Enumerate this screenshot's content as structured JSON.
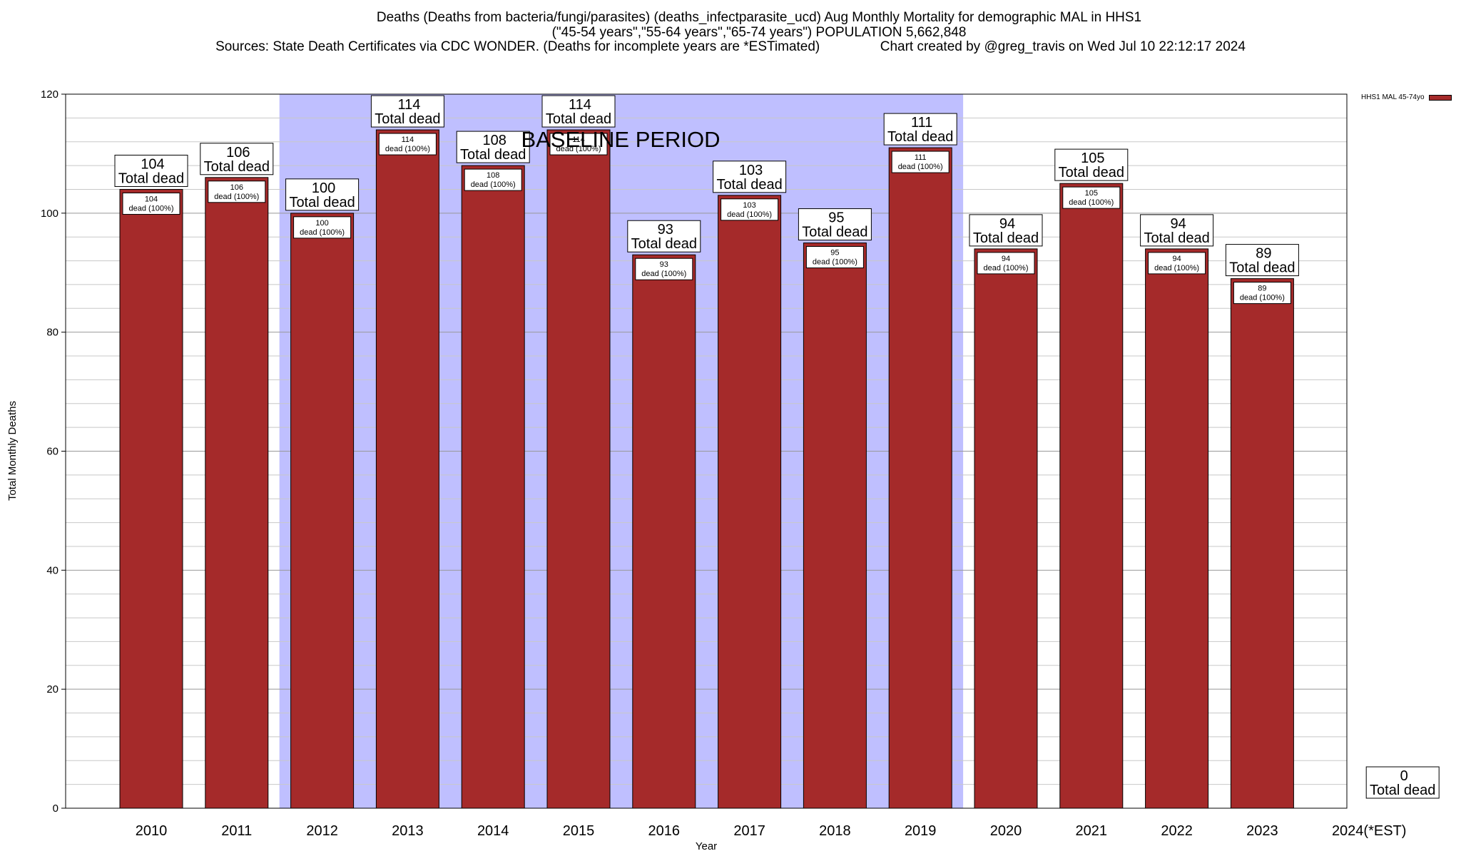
{
  "header": {
    "title_line1": "Deaths (Deaths from bacteria/fungi/parasites) (deaths_infectparasite_ucd) Aug Monthly Mortality for demographic MAL in HHS1",
    "title_line2": "(\"45-54 years\",\"55-64 years\",\"65-74 years\") POPULATION 5,662,848",
    "title_line3": "Sources: State Death Certificates via CDC WONDER. (Deaths for incomplete years are *ESTimated)                Chart created by @greg_travis on Wed Jul 10 22:12:17 2024"
  },
  "legend": {
    "label": "HHS1 MAL 45-74yo"
  },
  "colors": {
    "bar": "#a52a2a",
    "baseline_shade": "#bfbfff",
    "grid": "#c8c8c8"
  },
  "chart_data": {
    "type": "bar",
    "xlabel": "Year",
    "ylabel": "Total Monthly Deaths",
    "ylim": [
      0,
      120
    ],
    "yticks": [
      0,
      20,
      40,
      60,
      80,
      100,
      120
    ],
    "grid": true,
    "legend_position": "top-right",
    "categories": [
      "2010",
      "2011",
      "2012",
      "2013",
      "2014",
      "2015",
      "2016",
      "2017",
      "2018",
      "2019",
      "2020",
      "2021",
      "2022",
      "2023",
      "2024(*EST)"
    ],
    "series": [
      {
        "name": "HHS1 MAL 45-74yo",
        "values": [
          104,
          106,
          100,
          114,
          108,
          114,
          93,
          103,
          95,
          111,
          94,
          105,
          94,
          89,
          0
        ]
      }
    ],
    "top_label_suffix": "Total dead",
    "inner_label_suffix": "dead (100%)",
    "baseline_period": {
      "label": "BASELINE PERIOD",
      "from": "2012",
      "to": "2019"
    }
  }
}
